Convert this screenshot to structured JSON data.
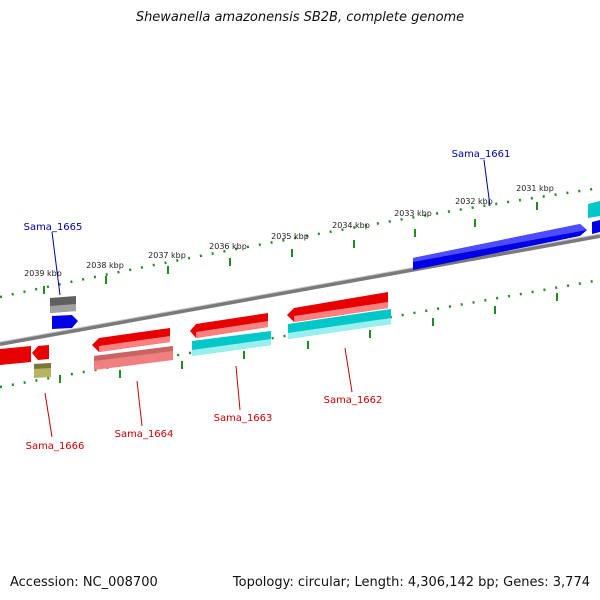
{
  "title": "Shewanella amazonensis SB2B, complete genome",
  "footer": {
    "accession": "Accession: NC_008700",
    "topology": "Topology: circular; Length: 4,306,142 bp; Genes: 3,774"
  },
  "kbp_labels": [
    "2031 kbp",
    "2032 kbp",
    "2033 kbp",
    "2034 kbp",
    "2035 kbp",
    "2036 kbp",
    "2037 kbp",
    "2038 kbp",
    "2039 kbp"
  ],
  "gene_labels": {
    "sama_1661": "Sama_1661",
    "sama_1662": "Sama_1662",
    "sama_1663": "Sama_1663",
    "sama_1664": "Sama_1664",
    "sama_1665": "Sama_1665",
    "sama_1666": "Sama_1666"
  },
  "colors": {
    "forward_cds": "#0000e6",
    "reverse_cds": "#e60000",
    "rna_feature": "#00c8c8",
    "pseudo_feature": "#f08080",
    "other_feature": "#606060",
    "olive_feature": "#b4b464",
    "tick_marks": "#228b22",
    "backbone": "#808080",
    "forward_label": "#0000aa",
    "reverse_label": "#cc0000"
  }
}
